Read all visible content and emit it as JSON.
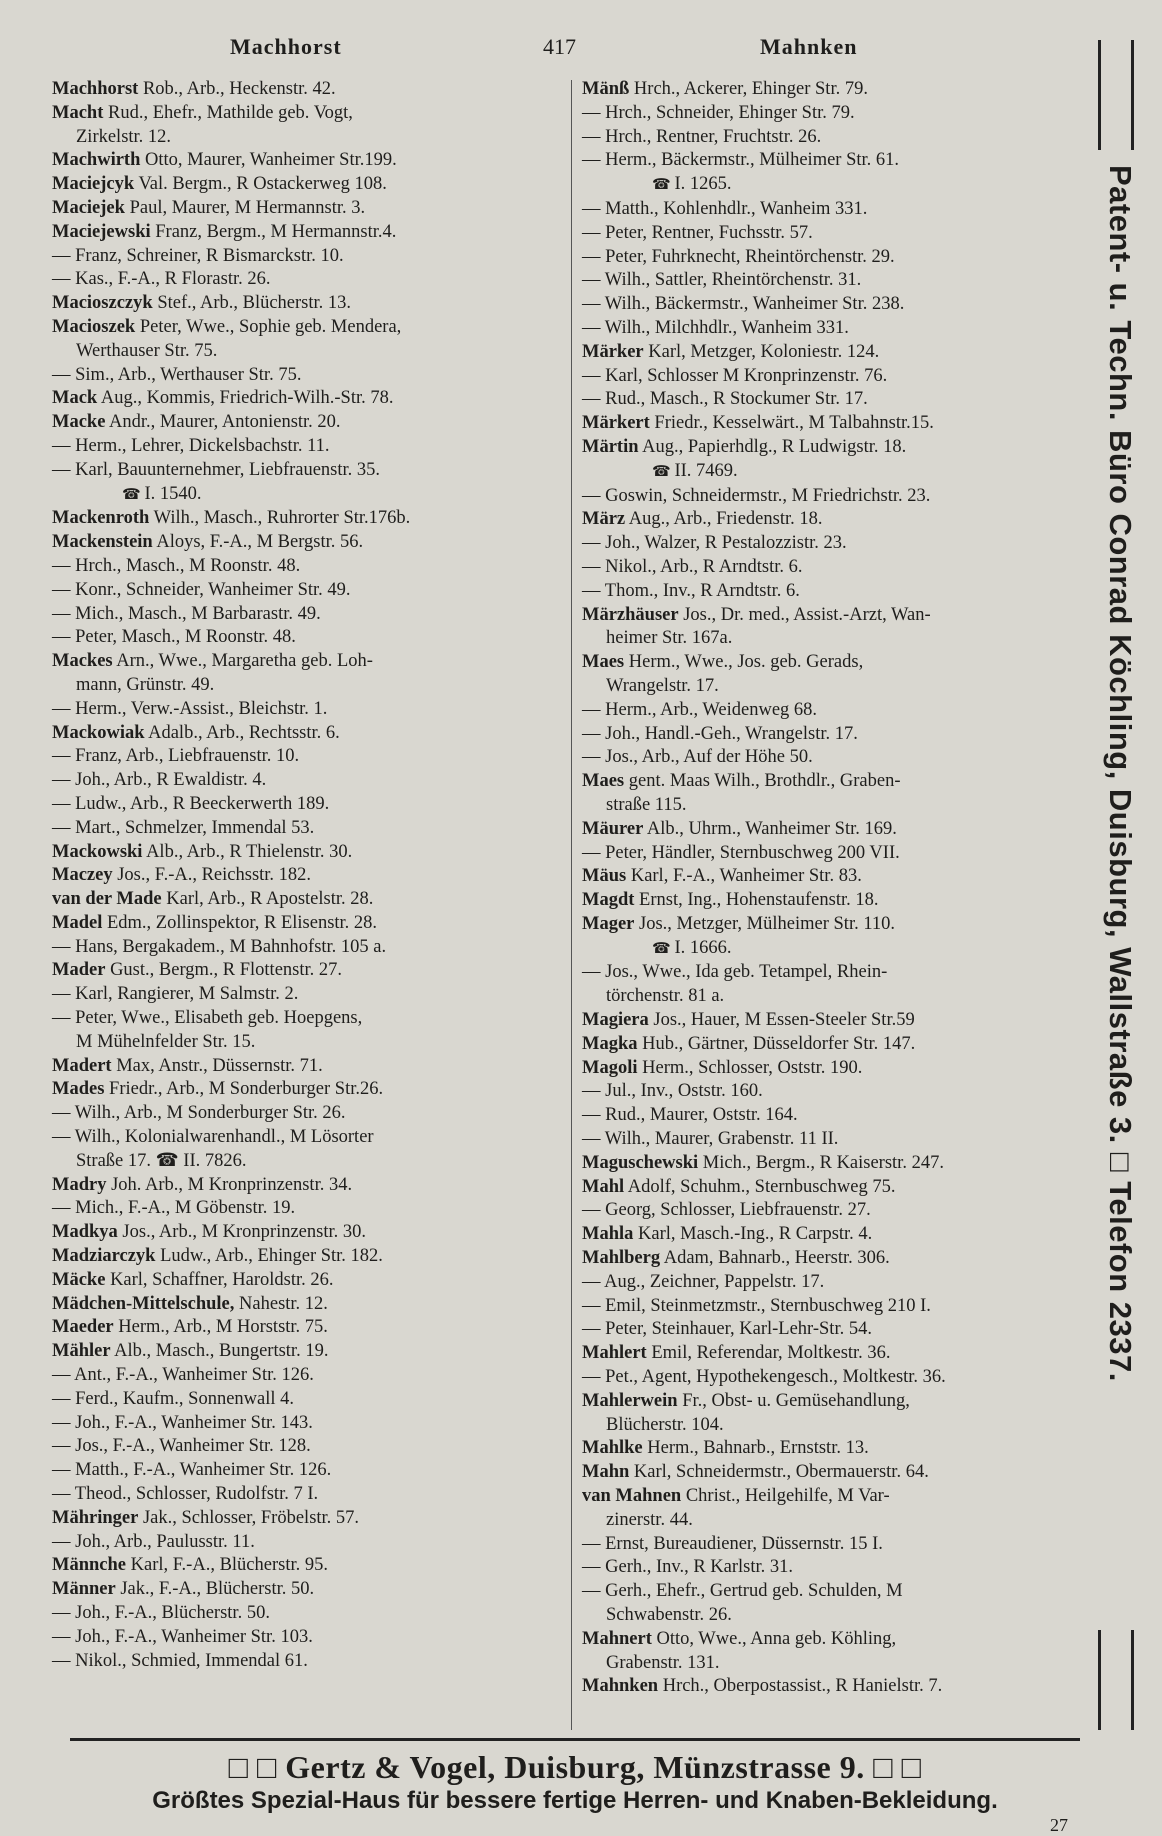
{
  "header": {
    "left": "Machhorst",
    "page": "417",
    "right": "Mahnken"
  },
  "left_column": [
    {
      "name": "Machhorst",
      "text": "Rob., Arb., Heckenstr. 42."
    },
    {
      "name": "Macht",
      "text": "Rud., Ehefr., Mathilde geb. Vogt,",
      "cont": "Zirkelstr. 12."
    },
    {
      "name": "Machwirth",
      "text": "Otto, Maurer, Wanheimer Str.199."
    },
    {
      "name": "Maciejcyk",
      "text": "Val. Bergm., R Ostackerweg 108."
    },
    {
      "name": "Maciejek",
      "text": "Paul, Maurer, M Hermannstr. 3."
    },
    {
      "name": "Maciejewski",
      "text": "Franz, Bergm., M Hermannstr.4."
    },
    {
      "name": "",
      "text": "— Franz, Schreiner, R Bismarckstr. 10."
    },
    {
      "name": "",
      "text": "— Kas., F.-A., R Florastr. 26."
    },
    {
      "name": "Macioszczyk",
      "text": "Stef., Arb., Blücherstr. 13."
    },
    {
      "name": "Macioszek",
      "text": "Peter, Wwe., Sophie geb. Mendera,",
      "cont": "Werthauser Str. 75."
    },
    {
      "name": "",
      "text": "— Sim., Arb., Werthauser Str. 75."
    },
    {
      "name": "Mack",
      "text": "Aug., Kommis, Friedrich-Wilh.-Str. 78."
    },
    {
      "name": "Macke",
      "text": "Andr., Maurer, Antonienstr. 20."
    },
    {
      "name": "",
      "text": "— Herm., Lehrer, Dickelsbachstr. 11."
    },
    {
      "name": "",
      "text": "— Karl, Bauunternehmer, Liebfrauenstr. 35.",
      "phone": "I. 1540."
    },
    {
      "name": "Mackenroth",
      "text": "Wilh., Masch., Ruhrorter Str.176b."
    },
    {
      "name": "Mackenstein",
      "text": "Aloys, F.-A., M Bergstr. 56."
    },
    {
      "name": "",
      "text": "— Hrch., Masch., M Roonstr. 48."
    },
    {
      "name": "",
      "text": "— Konr., Schneider, Wanheimer Str. 49."
    },
    {
      "name": "",
      "text": "— Mich., Masch., M Barbarastr. 49."
    },
    {
      "name": "",
      "text": "— Peter, Masch., M Roonstr. 48."
    },
    {
      "name": "Mackes",
      "text": "Arn., Wwe., Margaretha geb. Loh-",
      "cont": "mann, Grünstr. 49."
    },
    {
      "name": "",
      "text": "— Herm., Verw.-Assist., Bleichstr. 1."
    },
    {
      "name": "Mackowiak",
      "text": "Adalb., Arb., Rechtsstr. 6."
    },
    {
      "name": "",
      "text": "— Franz, Arb., Liebfrauenstr. 10."
    },
    {
      "name": "",
      "text": "— Joh., Arb., R Ewaldistr. 4."
    },
    {
      "name": "",
      "text": "— Ludw., Arb., R Beeckerwerth 189."
    },
    {
      "name": "",
      "text": "— Mart., Schmelzer, Immendal 53."
    },
    {
      "name": "Mackowski",
      "text": "Alb., Arb., R Thielenstr. 30."
    },
    {
      "name": "Maczey",
      "text": "Jos., F.-A., Reichsstr. 182."
    },
    {
      "name": "van der Made",
      "text": "Karl, Arb., R Apostelstr. 28."
    },
    {
      "name": "Madel",
      "text": "Edm., Zollinspektor, R Elisenstr. 28."
    },
    {
      "name": "",
      "text": "— Hans, Bergakadem., M Bahnhofstr. 105 a."
    },
    {
      "name": "Mader",
      "text": "Gust., Bergm., R Flottenstr. 27."
    },
    {
      "name": "",
      "text": "— Karl, Rangierer, M Salmstr. 2."
    },
    {
      "name": "",
      "text": "— Peter, Wwe., Elisabeth geb. Hoepgens,",
      "cont": "M Mühelnfelder Str. 15."
    },
    {
      "name": "Madert",
      "text": "Max, Anstr., Düssernstr. 71."
    },
    {
      "name": "Mades",
      "text": "Friedr., Arb., M Sonderburger Str.26."
    },
    {
      "name": "",
      "text": "— Wilh., Arb., M Sonderburger Str. 26."
    },
    {
      "name": "",
      "text": "— Wilh., Kolonialwarenhandl., M Lösorter",
      "cont": "Straße 17. ☎ II. 7826."
    },
    {
      "name": "Madry",
      "text": "Joh. Arb., M Kronprinzenstr. 34."
    },
    {
      "name": "",
      "text": "— Mich., F.-A., M Göbenstr. 19."
    },
    {
      "name": "Madkya",
      "text": "Jos., Arb., M Kronprinzenstr. 30."
    },
    {
      "name": "Madziarczyk",
      "text": "Ludw., Arb., Ehinger Str. 182."
    },
    {
      "name": "Mäcke",
      "text": "Karl, Schaffner, Haroldstr. 26."
    },
    {
      "name": "Mädchen-Mittelschule,",
      "text": "Nahestr. 12."
    },
    {
      "name": "Maeder",
      "text": "Herm., Arb., M Horststr. 75."
    },
    {
      "name": "Mähler",
      "text": "Alb., Masch., Bungertstr. 19."
    },
    {
      "name": "",
      "text": "— Ant., F.-A., Wanheimer Str. 126."
    },
    {
      "name": "",
      "text": "— Ferd., Kaufm., Sonnenwall 4."
    },
    {
      "name": "",
      "text": "— Joh., F.-A., Wanheimer Str. 143."
    },
    {
      "name": "",
      "text": "— Jos., F.-A., Wanheimer Str. 128."
    },
    {
      "name": "",
      "text": "— Matth., F.-A., Wanheimer Str. 126."
    },
    {
      "name": "",
      "text": "— Theod., Schlosser, Rudolfstr. 7 I."
    },
    {
      "name": "Mähringer",
      "text": "Jak., Schlosser, Fröbelstr. 57."
    },
    {
      "name": "",
      "text": "— Joh., Arb., Paulusstr. 11."
    },
    {
      "name": "Männche",
      "text": "Karl, F.-A., Blücherstr. 95."
    },
    {
      "name": "Männer",
      "text": "Jak., F.-A., Blücherstr. 50."
    },
    {
      "name": "",
      "text": "— Joh., F.-A., Blücherstr. 50."
    },
    {
      "name": "",
      "text": "— Joh., F.-A., Wanheimer Str. 103."
    },
    {
      "name": "",
      "text": "— Nikol., Schmied, Immendal 61."
    }
  ],
  "right_column": [
    {
      "name": "Mänß",
      "text": "Hrch., Ackerer, Ehinger Str. 79."
    },
    {
      "name": "",
      "text": "— Hrch., Schneider, Ehinger Str. 79."
    },
    {
      "name": "",
      "text": "— Hrch., Rentner, Fruchtstr. 26."
    },
    {
      "name": "",
      "text": "— Herm., Bäckermstr., Mülheimer Str. 61.",
      "phone": "I. 1265."
    },
    {
      "name": "",
      "text": "— Matth., Kohlenhdlr., Wanheim 331."
    },
    {
      "name": "",
      "text": "— Peter, Rentner, Fuchsstr. 57."
    },
    {
      "name": "",
      "text": "— Peter, Fuhrknecht, Rheintörchenstr. 29."
    },
    {
      "name": "",
      "text": "— Wilh., Sattler, Rheintörchenstr. 31."
    },
    {
      "name": "",
      "text": "— Wilh., Bäckermstr., Wanheimer Str. 238."
    },
    {
      "name": "",
      "text": "— Wilh., Milchhdlr., Wanheim 331."
    },
    {
      "name": "Märker",
      "text": "Karl, Metzger, Koloniestr. 124."
    },
    {
      "name": "",
      "text": "— Karl, Schlosser M Kronprinzenstr. 76."
    },
    {
      "name": "",
      "text": "— Rud., Masch., R Stockumer Str. 17."
    },
    {
      "name": "Märkert",
      "text": "Friedr., Kesselwärt., M Talbahnstr.15."
    },
    {
      "name": "Märtin",
      "text": "Aug., Papierhdlg., R Ludwigstr. 18.",
      "phone": "II. 7469."
    },
    {
      "name": "",
      "text": "— Goswin, Schneidermstr., M Friedrichstr. 23."
    },
    {
      "name": "März",
      "text": "Aug., Arb., Friedenstr. 18."
    },
    {
      "name": "",
      "text": "— Joh., Walzer, R Pestalozzistr. 23."
    },
    {
      "name": "",
      "text": "— Nikol., Arb., R Arndtstr. 6."
    },
    {
      "name": "",
      "text": "— Thom., Inv., R Arndtstr. 6."
    },
    {
      "name": "Märzhäuser",
      "text": "Jos., Dr. med., Assist.-Arzt, Wan-",
      "cont": "heimer Str. 167a."
    },
    {
      "name": "Maes",
      "text": "Herm., Wwe., Jos. geb. Gerads,",
      "cont": "Wrangelstr. 17."
    },
    {
      "name": "",
      "text": "— Herm., Arb., Weidenweg 68."
    },
    {
      "name": "",
      "text": "— Joh., Handl.-Geh., Wrangelstr. 17."
    },
    {
      "name": "",
      "text": "— Jos., Arb., Auf der Höhe 50."
    },
    {
      "name": "Maes",
      "text": "gent. Maas Wilh., Brothdlr., Graben-",
      "cont": "straße 115."
    },
    {
      "name": "Mäurer",
      "text": "Alb., Uhrm., Wanheimer Str. 169."
    },
    {
      "name": "",
      "text": "— Peter, Händler, Sternbuschweg 200 VII."
    },
    {
      "name": "Mäus",
      "text": "Karl, F.-A., Wanheimer Str. 83."
    },
    {
      "name": "Magdt",
      "text": "Ernst, Ing., Hohenstaufenstr. 18."
    },
    {
      "name": "Mager",
      "text": "Jos., Metzger, Mülheimer Str. 110.",
      "phone": "I. 1666."
    },
    {
      "name": "",
      "text": "— Jos., Wwe., Ida geb. Tetampel, Rhein-",
      "cont": "törchenstr. 81 a."
    },
    {
      "name": "Magiera",
      "text": "Jos., Hauer, M Essen-Steeler Str.59"
    },
    {
      "name": "Magka",
      "text": "Hub., Gärtner, Düsseldorfer Str. 147."
    },
    {
      "name": "Magoli",
      "text": "Herm., Schlosser, Oststr. 190."
    },
    {
      "name": "",
      "text": "— Jul., Inv., Oststr. 160."
    },
    {
      "name": "",
      "text": "— Rud., Maurer, Oststr. 164."
    },
    {
      "name": "",
      "text": "— Wilh., Maurer, Grabenstr. 11 II."
    },
    {
      "name": "Maguschewski",
      "text": "Mich., Bergm., R Kaiserstr. 247."
    },
    {
      "name": "Mahl",
      "text": "Adolf, Schuhm., Sternbuschweg 75."
    },
    {
      "name": "",
      "text": "— Georg, Schlosser, Liebfrauenstr. 27."
    },
    {
      "name": "Mahla",
      "text": "Karl, Masch.-Ing., R Carpstr. 4."
    },
    {
      "name": "Mahlberg",
      "text": "Adam, Bahnarb., Heerstr. 306."
    },
    {
      "name": "",
      "text": "— Aug., Zeichner, Pappelstr. 17."
    },
    {
      "name": "",
      "text": "— Emil, Steinmetzmstr., Sternbuschweg 210 I."
    },
    {
      "name": "",
      "text": "— Peter, Steinhauer, Karl-Lehr-Str. 54."
    },
    {
      "name": "Mahlert",
      "text": "Emil, Referendar, Moltkestr. 36."
    },
    {
      "name": "",
      "text": "— Pet., Agent, Hypothekengesch., Moltkestr. 36."
    },
    {
      "name": "Mahlerwein",
      "text": "Fr., Obst- u. Gemüsehandlung,",
      "cont": "Blücherstr. 104."
    },
    {
      "name": "Mahlke",
      "text": "Herm., Bahnarb., Ernststr. 13."
    },
    {
      "name": "Mahn",
      "text": "Karl, Schneidermstr., Obermauerstr. 64."
    },
    {
      "name": "van Mahnen",
      "text": "Christ., Heilgehilfe, M Var-",
      "cont": "zinerstr. 44."
    },
    {
      "name": "",
      "text": "— Ernst, Bureaudiener, Düssernstr. 15 I."
    },
    {
      "name": "",
      "text": "— Gerh., Inv., R Karlstr. 31."
    },
    {
      "name": "",
      "text": "— Gerh., Ehefr., Gertrud geb. Schulden, M",
      "cont": "Schwabenstr. 26."
    },
    {
      "name": "Mahnert",
      "text": "Otto, Wwe., Anna geb. Köhling,",
      "cont": "Grabenstr. 131."
    },
    {
      "name": "Mahnken",
      "text": "Hrch., Oberpostassist., R Hanielstr. 7."
    }
  ],
  "side_ad": "Patent- u. Techn. Büro Conrad Köchling, Duisburg, Wallstraße 3. □ Telefon 2337.",
  "footer": {
    "ad_line1": "□ □ Gertz & Vogel, Duisburg, Münzstrasse 9. □ □",
    "ad_line2": "Größtes Spezial-Haus für bessere fertige Herren- und Knaben-Bekleidung.",
    "sheet_number": "27"
  }
}
